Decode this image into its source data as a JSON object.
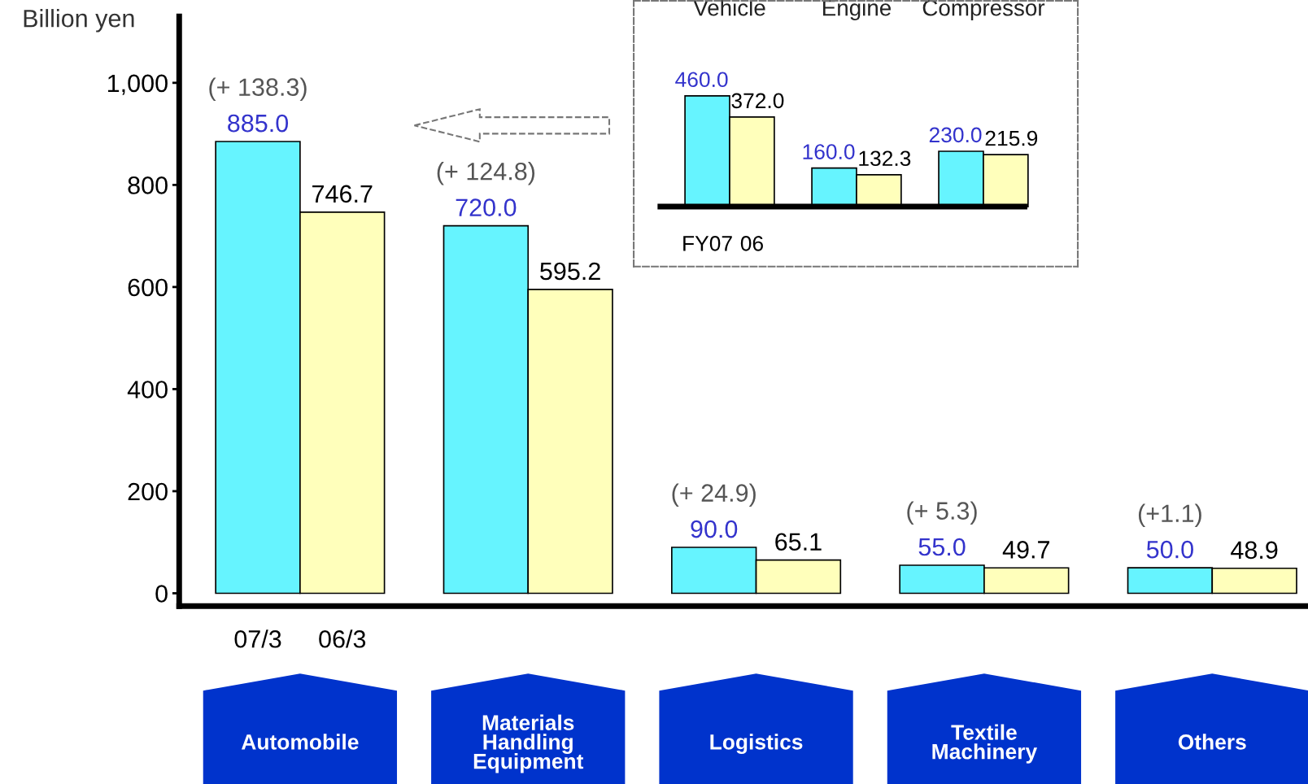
{
  "chart_data": [
    {
      "type": "bar",
      "ylabel": "Billion yen",
      "categories": [
        "Automobile",
        "Materials\nHandling\nEquipment",
        "Logistics",
        "Textile\nMachinery",
        "Others"
      ],
      "series": [
        {
          "name": "07/3",
          "color": "#66f4ff",
          "values": [
            885.0,
            720.0,
            90.0,
            55.0,
            50.0
          ],
          "value_labels": [
            "885.0",
            "720.0",
            "90.0",
            "55.0",
            "50.0"
          ]
        },
        {
          "name": "06/3",
          "color": "#ffffbb",
          "values": [
            746.7,
            595.2,
            65.1,
            49.7,
            48.9
          ],
          "value_labels": [
            "746.7",
            "595.2",
            "65.1",
            "49.7",
            "48.9"
          ]
        }
      ],
      "ylim": [
        -25,
        1130
      ],
      "yticks": [
        0,
        200,
        400,
        600,
        800,
        {
          "value": 1000,
          "label": "1,000"
        }
      ],
      "legend": "bottom left",
      "annotations": [
        {
          "text": "(+ 138.3)",
          "x": "Automobile",
          "y": 885.0
        },
        {
          "text": "(+ 124.8)",
          "x": "Materials\nHandling\nEquipment",
          "y": 720.0
        },
        {
          "text": "(+ 24.9)",
          "x": "Logistics",
          "y": 90.0
        },
        {
          "text": "(+ 5.3)",
          "x": "Textile\nMachinery",
          "y": 55.0
        },
        {
          "text": "(+1.1)",
          "x": "Others",
          "y": 50.0
        }
      ]
    },
    {
      "type": "bar",
      "categories": [
        "Vehicle",
        "Engine",
        "Compressor"
      ],
      "series": [
        {
          "name": "FY07",
          "color": "#66f4ff",
          "values": [
            460.0,
            160.0,
            230.0
          ],
          "value_labels": [
            "460.0",
            "160.0",
            "230.0"
          ]
        },
        {
          "name": "06",
          "color": "#ffffbb",
          "values": [
            372.0,
            132.3,
            215.9
          ],
          "value_labels": [
            "372.0",
            "132.3",
            "215.9"
          ]
        }
      ],
      "ylim": [
        -249,
        855
      ],
      "ref_lines": [
        {
          "axis": "y",
          "value": 0,
          "color": "#000000"
        }
      ],
      "tick_labels": "x",
      "legend": "bottom left"
    }
  ]
}
